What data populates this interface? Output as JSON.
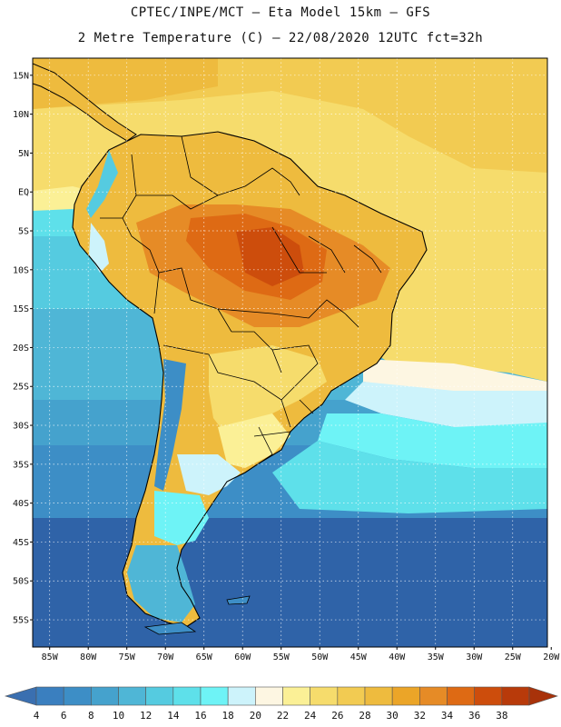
{
  "title_line1": "CPTEC/INPE/MCT –  Eta Model 15km – GFS",
  "title_line2": "2 Metre Temperature (C) – 22/08/2020 12UTC fct=32h",
  "lat_labels": [
    "15N",
    "10N",
    "5N",
    "EQ",
    "5S",
    "10S",
    "15S",
    "20S",
    "25S",
    "30S",
    "35S",
    "40S",
    "45S",
    "50S",
    "55S"
  ],
  "lat_values": [
    15,
    10,
    5,
    0,
    -5,
    -10,
    -15,
    -20,
    -25,
    -30,
    -35,
    -40,
    -45,
    -50,
    -55
  ],
  "lon_labels": [
    "85W",
    "80W",
    "75W",
    "70W",
    "65W",
    "60W",
    "55W",
    "50W",
    "45W",
    "40W",
    "35W",
    "30W",
    "25W",
    "20W"
  ],
  "lon_values": [
    -85,
    -80,
    -75,
    -70,
    -65,
    -60,
    -55,
    -50,
    -45,
    -40,
    -35,
    -30,
    -25,
    -20
  ],
  "colorbar": {
    "labels": [
      "4",
      "6",
      "8",
      "10",
      "12",
      "14",
      "16",
      "18",
      "20",
      "22",
      "24",
      "26",
      "28",
      "30",
      "32",
      "34",
      "36",
      "38"
    ],
    "colors": [
      "#3a7fbf",
      "#3d8ec6",
      "#45a2cd",
      "#4fb6d6",
      "#55cbe0",
      "#5ee0ea",
      "#6ef3f6",
      "#cdf3fb",
      "#fdf6e2",
      "#fbf096",
      "#f6dc6c",
      "#f2cb52",
      "#eebb3e",
      "#eba528",
      "#e68b26",
      "#de6a14",
      "#cd4d0c",
      "#b83a0a"
    ],
    "under_color": "#3a6fb0",
    "over_color": "#a8320a"
  }
}
